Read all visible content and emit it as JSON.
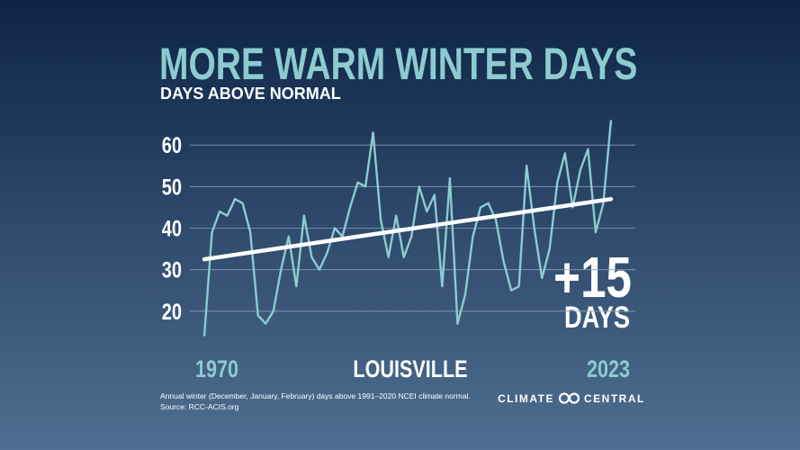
{
  "chart_data": {
    "type": "line",
    "title": "MORE WARM WINTER DAYS",
    "subtitle": "DAYS ABOVE NORMAL",
    "location": "LOUISVILLE",
    "annotation": {
      "value": "+15",
      "unit": "DAYS"
    },
    "x": [
      1970,
      1971,
      1972,
      1973,
      1974,
      1975,
      1976,
      1977,
      1978,
      1979,
      1980,
      1981,
      1982,
      1983,
      1984,
      1985,
      1986,
      1987,
      1988,
      1989,
      1990,
      1991,
      1992,
      1993,
      1994,
      1995,
      1996,
      1997,
      1998,
      1999,
      2000,
      2001,
      2002,
      2003,
      2004,
      2005,
      2006,
      2007,
      2008,
      2009,
      2010,
      2011,
      2012,
      2013,
      2014,
      2015,
      2016,
      2017,
      2018,
      2019,
      2020,
      2021,
      2022,
      2023
    ],
    "values": [
      14,
      39,
      44,
      43,
      47,
      46,
      39,
      19,
      17,
      20,
      30,
      38,
      26,
      43,
      33,
      30,
      34,
      40,
      38,
      45,
      51,
      50,
      63,
      42,
      33,
      43,
      33,
      38,
      50,
      44,
      48,
      26,
      52,
      17,
      24,
      38,
      45,
      46,
      42,
      32,
      25,
      26,
      55,
      40,
      28,
      35,
      51,
      58,
      45,
      54,
      59,
      39,
      46,
      66
    ],
    "color": "#8ccbd0",
    "trend": {
      "x": [
        1970,
        2023
      ],
      "values": [
        32.5,
        47
      ],
      "color": "#ffffff"
    },
    "xlim": [
      1970,
      2023
    ],
    "xticks": [
      1970,
      2023
    ],
    "ylim": [
      10,
      70
    ],
    "yticks": [
      20,
      30,
      40,
      50,
      60
    ],
    "grid": true,
    "footnote": [
      "Annual winter (December, January, February) days above 1991–2020 NCEI climate normal.",
      "Source: RCC-ACIS.org"
    ],
    "logo": [
      "CLIMATE",
      "CENTRAL"
    ]
  }
}
